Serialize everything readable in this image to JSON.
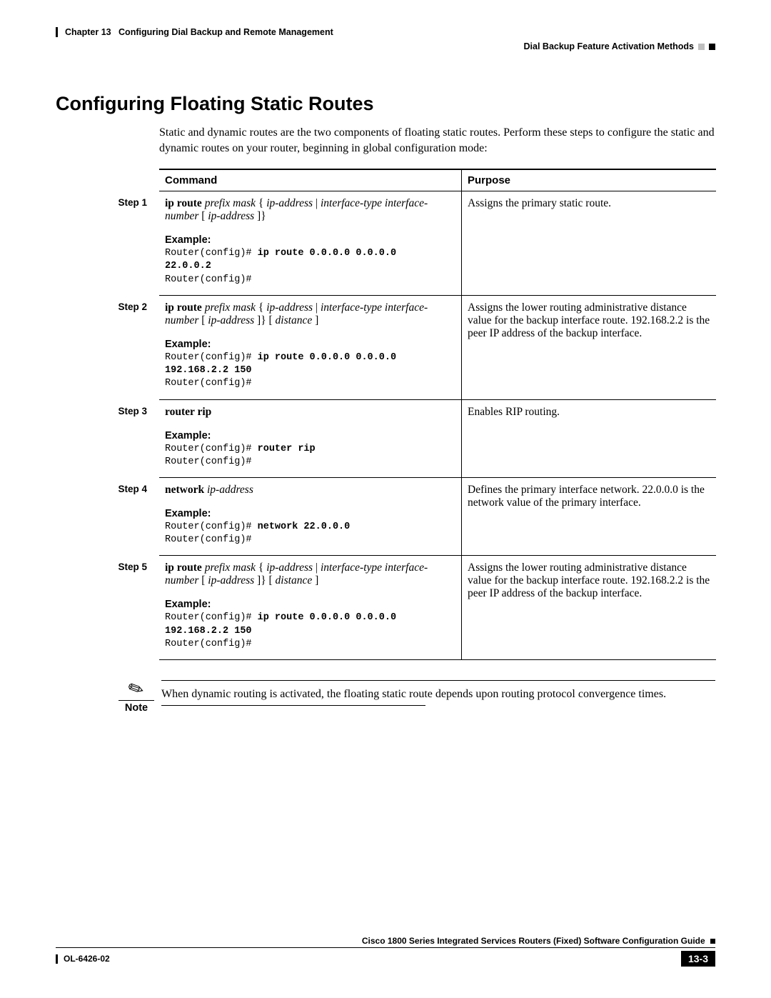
{
  "header": {
    "chapter_label": "Chapter 13",
    "chapter_title": "Configuring Dial Backup and Remote Management",
    "right_text": "Dial Backup Feature Activation Methods"
  },
  "section_title": "Configuring Floating Static Routes",
  "intro": "Static and dynamic routes are the two components of floating static routes. Perform these steps to configure the static and dynamic routes on your router, beginning in global configuration mode:",
  "table_headers": {
    "command": "Command",
    "purpose": "Purpose"
  },
  "steps": {
    "s1": {
      "label": "Step 1",
      "cmd_bold1": "ip route",
      "cmd_ital1": "prefix mask",
      "cmd_plain1": " {",
      "cmd_ital2": "ip-address",
      "cmd_plain2": " | ",
      "cmd_ital3": "interface-type interface-number",
      "cmd_plain3": " [",
      "cmd_ital4": "ip-address",
      "cmd_plain4": "]}",
      "example_label": "Example:",
      "code_line1": "Router(config)# ",
      "code_bold1": "ip route 0.0.0.0 0.0.0.0",
      "code_bold2": "22.0.0.2",
      "code_line3": "Router(config)#",
      "purpose": "Assigns the primary static route."
    },
    "s2": {
      "label": "Step 2",
      "cmd_bold1": "ip route",
      "cmd_ital1": "prefix mask",
      "cmd_plain1": " {",
      "cmd_ital2": "ip-address",
      "cmd_plain2": " | ",
      "cmd_ital3": "interface-type interface-number",
      "cmd_plain3": " [",
      "cmd_ital4": "ip-address",
      "cmd_plain4": "]} [",
      "cmd_ital5": "distance",
      "cmd_plain5": "]",
      "example_label": "Example:",
      "code_line1": "Router(config)# ",
      "code_bold1": "ip route 0.0.0.0 0.0.0.0",
      "code_bold2": "192.168.2.2 150",
      "code_line3": "Router(config)#",
      "purpose": "Assigns the lower routing administrative distance value for the backup interface route. 192.168.2.2 is the peer IP address of the backup interface."
    },
    "s3": {
      "label": "Step 3",
      "cmd_bold1": "router rip",
      "example_label": "Example:",
      "code_line1": "Router(config)# ",
      "code_bold1": "router rip",
      "code_line3": "Router(config)#",
      "purpose": "Enables RIP routing."
    },
    "s4": {
      "label": "Step 4",
      "cmd_bold1": "network",
      "cmd_ital1": "ip-address",
      "example_label": "Example:",
      "code_line1": "Router(config)# ",
      "code_bold1": "network 22.0.0.0",
      "code_line3": "Router(config)#",
      "purpose": "Defines the primary interface network. 22.0.0.0 is the network value of the primary interface."
    },
    "s5": {
      "label": "Step 5",
      "cmd_bold1": "ip route",
      "cmd_ital1": "prefix mask",
      "cmd_plain1": " {",
      "cmd_ital2": "ip-address",
      "cmd_plain2": " | ",
      "cmd_ital3": "interface-type interface-number",
      "cmd_plain3": " [",
      "cmd_ital4": "ip-address",
      "cmd_plain4": "]} [",
      "cmd_ital5": "distance",
      "cmd_plain5": "]",
      "example_label": "Example:",
      "code_line1": "Router(config)# ",
      "code_bold1": "ip route 0.0.0.0 0.0.0.0",
      "code_bold2": "192.168.2.2 150",
      "code_line3": "Router(config)#",
      "purpose": "Assigns the lower routing administrative distance value for the backup interface route. 192.168.2.2 is the peer IP address of the backup interface."
    }
  },
  "note": {
    "label": "Note",
    "text": "When dynamic routing is activated, the floating static route depends upon routing protocol convergence times."
  },
  "footer": {
    "guide_title": "Cisco 1800 Series Integrated Services Routers (Fixed) Software Configuration Guide",
    "doc_id": "OL-6426-02",
    "page_num": "13-3"
  }
}
